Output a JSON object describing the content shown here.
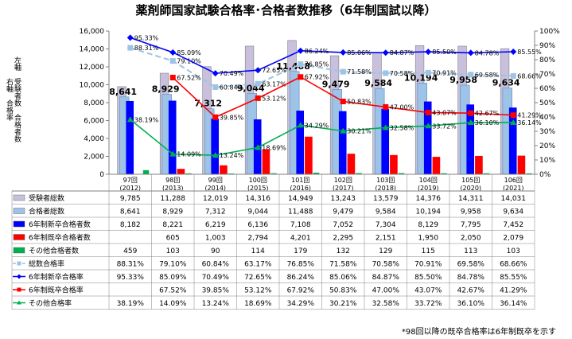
{
  "title": "薬剤師国家試験合格率･合格者数推移（6年制国試以降）",
  "note": "*98回以降の既卒合格率は6年制既卒を示す",
  "axis_labels": {
    "right_col": "右軸　合格率",
    "left_col": "左軸　受験者数　合格者数"
  },
  "chart_data": {
    "type": "bar",
    "categories": [
      "97回\n(2012)",
      "98回\n(2013)",
      "99回\n(2014)",
      "100回\n(2015)",
      "101回\n(2016)",
      "102回\n(2017)",
      "103回\n(2018)",
      "104回\n(2019)",
      "105回\n(2020)",
      "106回\n(2021)"
    ],
    "y_left_lim": [
      0,
      16000
    ],
    "y_left_ticks": [
      "0",
      "2,000",
      "4,000",
      "6,000",
      "8,000",
      "10,000",
      "12,000",
      "14,000",
      "16,000"
    ],
    "y_right_lim": [
      0,
      100
    ],
    "y_right_ticks": [
      "0%",
      "10%",
      "20%",
      "30%",
      "40%",
      "50%",
      "60%",
      "70%",
      "80%",
      "90%",
      "100%"
    ],
    "grid": false,
    "bar_series": [
      {
        "name": "受験者総数",
        "color": "#c8c0dc",
        "values": [
          9785,
          11288,
          12019,
          14316,
          14949,
          13243,
          13579,
          14376,
          14311,
          14031
        ],
        "table": [
          "9,785",
          "11,288",
          "12,019",
          "14,316",
          "14,949",
          "13,243",
          "13,579",
          "14,376",
          "14,311",
          "14,031"
        ]
      },
      {
        "name": "合格者総数",
        "color": "#9dc3e6",
        "values": [
          8641,
          8929,
          7312,
          9044,
          11488,
          9479,
          9584,
          10194,
          9958,
          9634
        ],
        "table": [
          "8,641",
          "8,929",
          "7,312",
          "9,044",
          "11,488",
          "9,479",
          "9,584",
          "10,194",
          "9,958",
          "9,634"
        ]
      },
      {
        "name": "6年制新卒合格者数",
        "color": "#0000ff",
        "values": [
          8182,
          8221,
          6219,
          6136,
          7108,
          7052,
          7304,
          8129,
          7795,
          7452
        ],
        "table": [
          "8,182",
          "8,221",
          "6,219",
          "6,136",
          "7,108",
          "7,052",
          "7,304",
          "8,129",
          "7,795",
          "7,452"
        ]
      },
      {
        "name": "6年制既卒合格者数",
        "color": "#ff0000",
        "values": [
          null,
          605,
          1003,
          2794,
          4201,
          2295,
          2151,
          1950,
          2050,
          2079
        ],
        "table": [
          "",
          "605",
          "1,003",
          "2,794",
          "4,201",
          "2,295",
          "2,151",
          "1,950",
          "2,050",
          "2,079"
        ]
      },
      {
        "name": "その他合格者数",
        "color": "#00b050",
        "values": [
          459,
          103,
          90,
          114,
          179,
          132,
          129,
          115,
          113,
          103
        ],
        "table": [
          "459",
          "103",
          "90",
          "114",
          "179",
          "132",
          "129",
          "115",
          "113",
          "103"
        ]
      }
    ],
    "bar_top_labels": [
      "8,641",
      "8,929",
      "7,312",
      "9,044",
      "11,488",
      "9,479",
      "9,584",
      "10,194",
      "9,958",
      "9,634"
    ],
    "line_series": [
      {
        "name": "総数合格率",
        "color": "#9dc3e6",
        "marker": "square",
        "dash": true,
        "values": [
          88.31,
          79.1,
          60.84,
          63.17,
          76.85,
          71.58,
          70.58,
          70.91,
          69.58,
          68.66
        ],
        "table": [
          "88.31%",
          "79.10%",
          "60.84%",
          "63.17%",
          "76.85%",
          "71.58%",
          "70.58%",
          "70.91%",
          "69.58%",
          "68.66%"
        ]
      },
      {
        "name": "6年制新卒合格率",
        "color": "#0000ff",
        "marker": "diamond",
        "dash": false,
        "values": [
          95.33,
          85.09,
          70.49,
          72.65,
          86.24,
          85.06,
          84.87,
          85.5,
          84.78,
          85.55
        ],
        "table": [
          "95.33%",
          "85.09%",
          "70.49%",
          "72.65%",
          "86.24%",
          "85.06%",
          "84.87%",
          "85.50%",
          "84.78%",
          "85.55%"
        ]
      },
      {
        "name": "6年制既卒合格率",
        "color": "#ff0000",
        "marker": "square",
        "dash": false,
        "values": [
          null,
          67.52,
          39.85,
          53.12,
          67.92,
          50.83,
          47.0,
          43.07,
          42.67,
          41.29
        ],
        "table": [
          "",
          "67.52%",
          "39.85%",
          "53.12%",
          "67.92%",
          "50.83%",
          "47.00%",
          "43.07%",
          "42.67%",
          "41.29%"
        ]
      },
      {
        "name": "その他合格率",
        "color": "#00b050",
        "marker": "triangle",
        "dash": false,
        "values": [
          38.19,
          14.09,
          13.24,
          18.69,
          34.29,
          30.21,
          32.58,
          33.72,
          36.1,
          36.14
        ],
        "table": [
          "38.19%",
          "14.09%",
          "13.24%",
          "18.69%",
          "34.29%",
          "30.21%",
          "32.58%",
          "33.72%",
          "36.10%",
          "36.14%"
        ]
      }
    ]
  }
}
